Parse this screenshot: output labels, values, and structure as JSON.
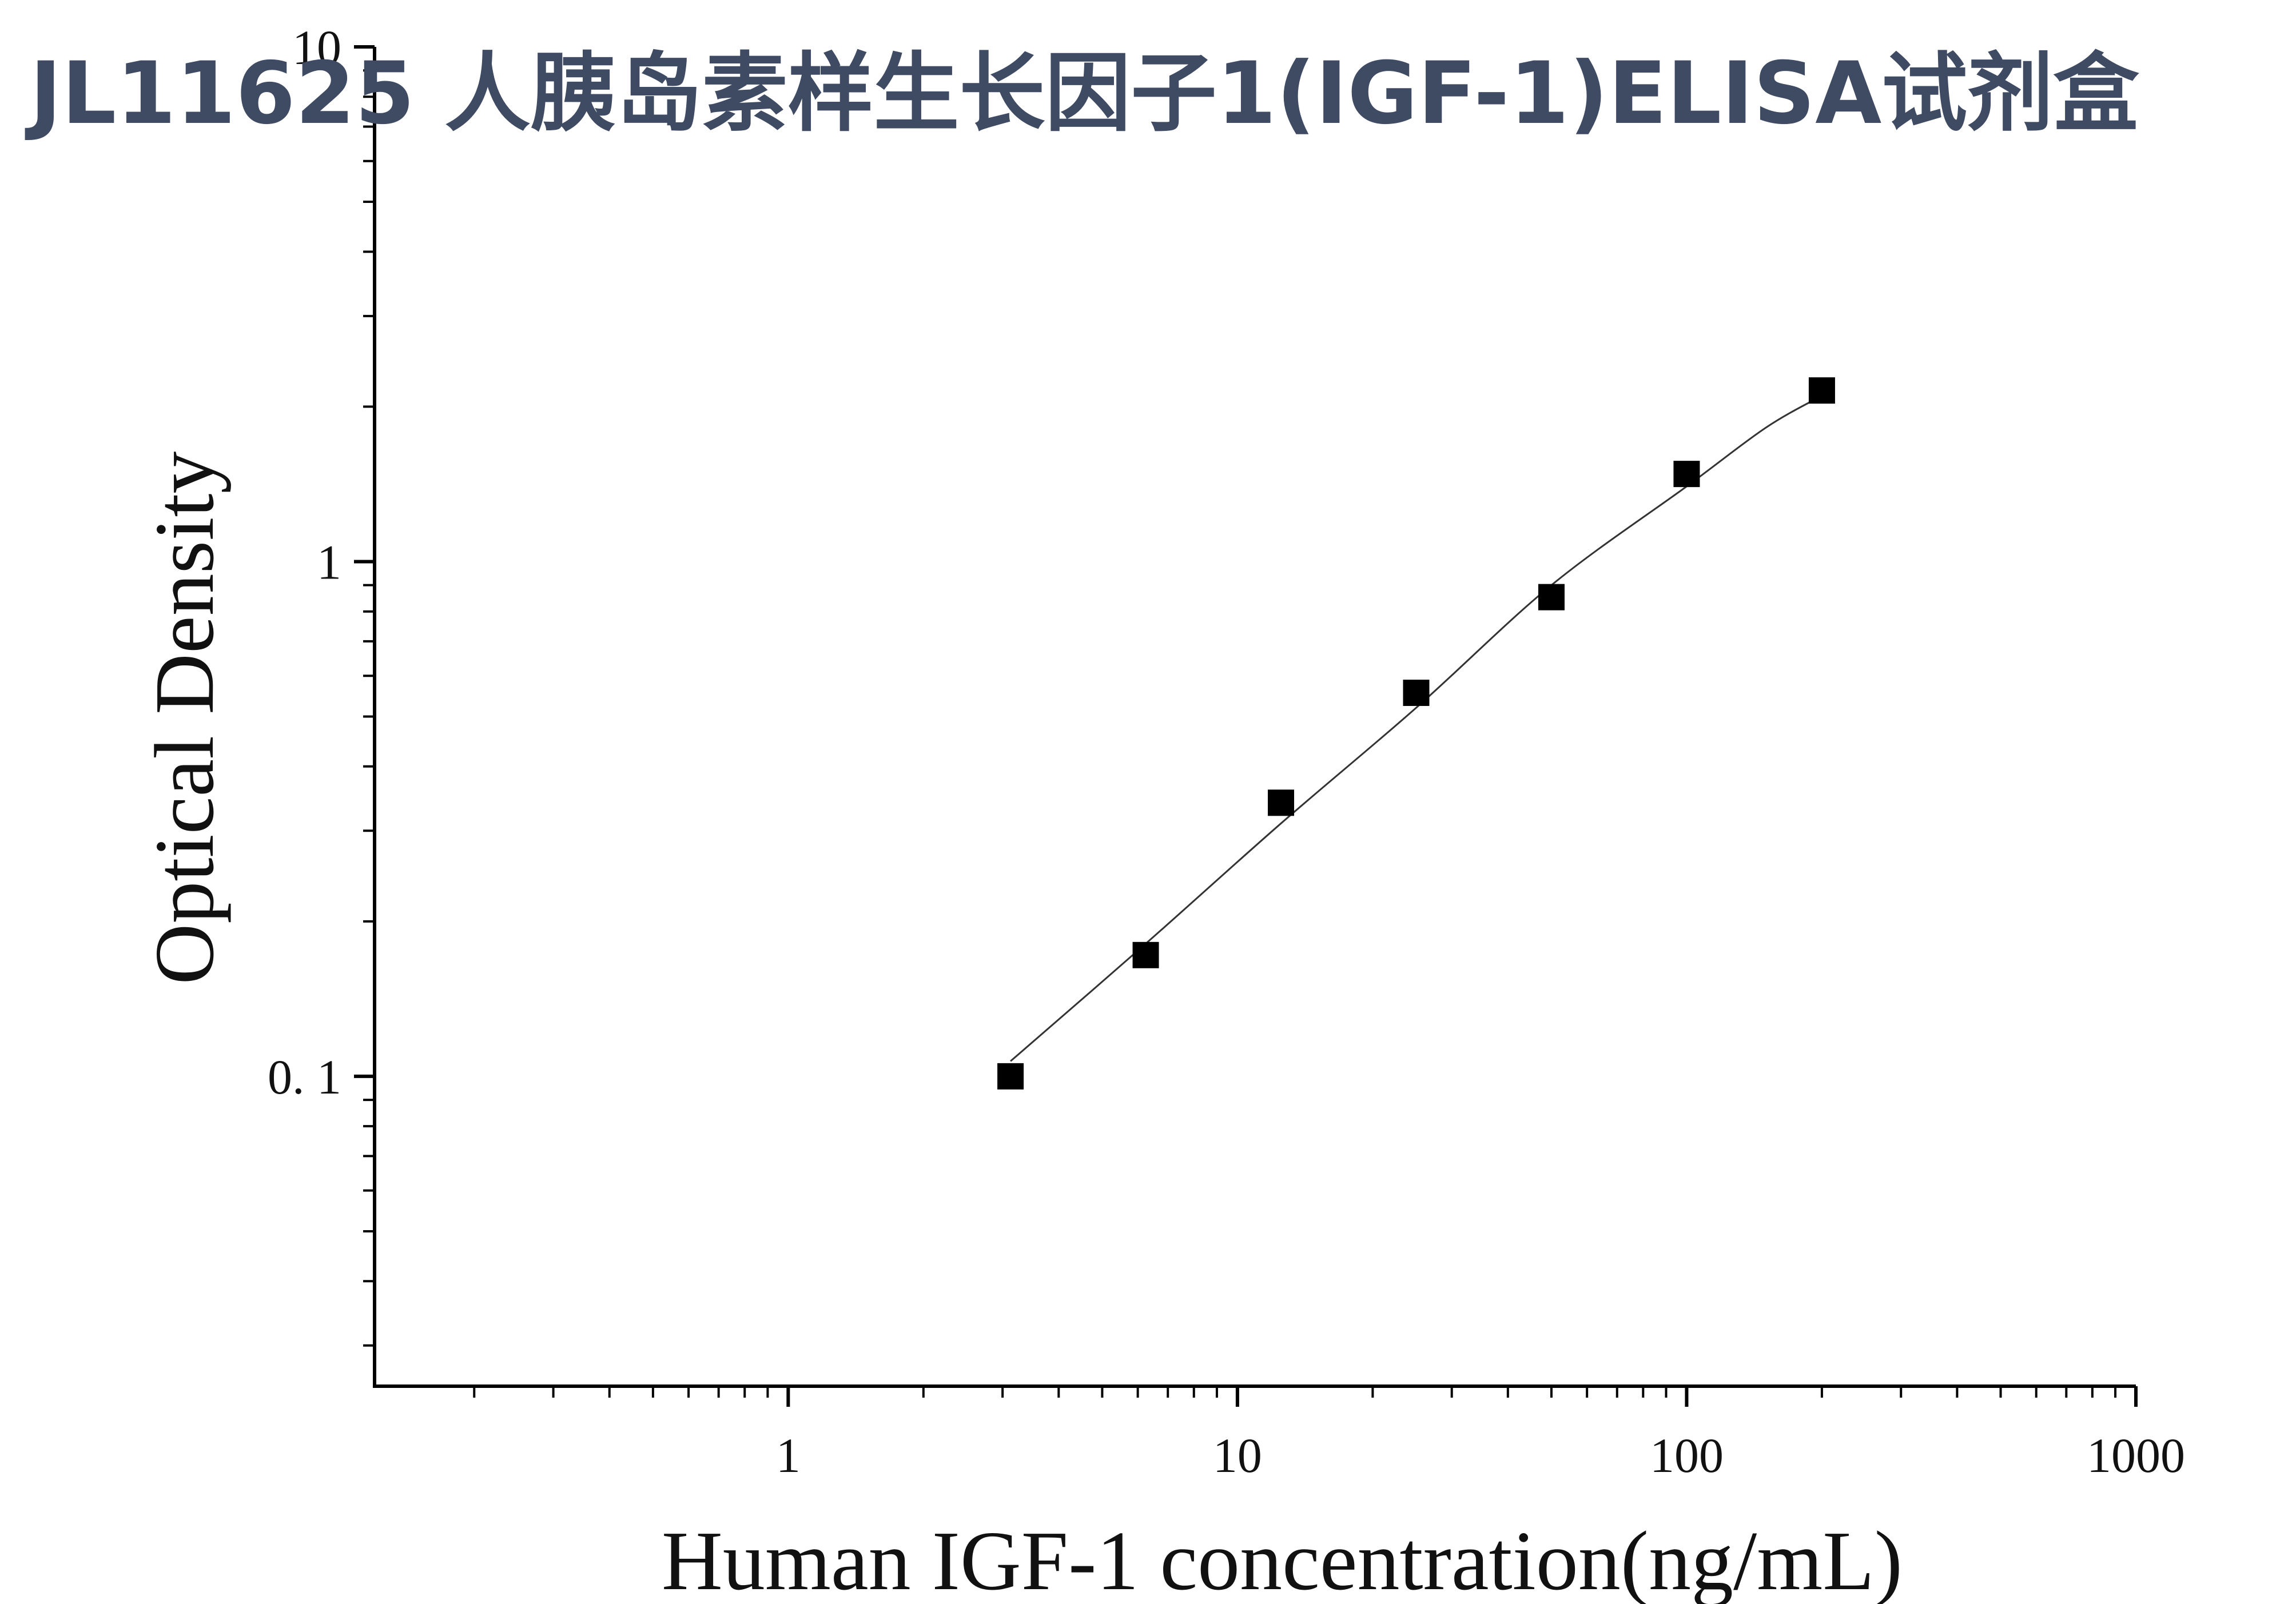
{
  "title": "JL11625 人胰岛素样生长因子1(IGF-1)ELISA试剂盒",
  "chart_data": {
    "type": "scatter",
    "title": "JL11625 人胰岛素样生长因子1(IGF-1)ELISA试剂盒",
    "xlabel": "Human IGF-1 concentration(ng/mL)",
    "ylabel": "Optical Density",
    "x_scale": "log",
    "y_scale": "log",
    "xlim": [
      0.12,
      1000
    ],
    "ylim": [
      0.025,
      10
    ],
    "x_ticks": [
      {
        "value": 1,
        "label": "1"
      },
      {
        "value": 10,
        "label": "10"
      },
      {
        "value": 100,
        "label": "100"
      },
      {
        "value": 1000,
        "label": "1000"
      }
    ],
    "y_ticks": [
      {
        "value": 0.1,
        "label": "0. 1"
      },
      {
        "value": 1,
        "label": "1"
      },
      {
        "value": 10,
        "label": "10"
      }
    ],
    "grid": false,
    "legend": "none",
    "marker": "square",
    "marker_color": "#000000",
    "fit_line_color": "#333333",
    "series": [
      {
        "x": [
          3.125,
          6.25,
          12.5,
          25,
          50,
          100,
          200
        ],
        "y": [
          0.1,
          0.172,
          0.34,
          0.556,
          0.853,
          1.48,
          2.15
        ]
      }
    ],
    "fit_curve": {
      "x": [
        3.125,
        6.25,
        12.5,
        25,
        50,
        100,
        150,
        200
      ],
      "y": [
        0.107,
        0.181,
        0.31,
        0.52,
        0.9,
        1.4,
        1.82,
        2.1
      ]
    }
  }
}
